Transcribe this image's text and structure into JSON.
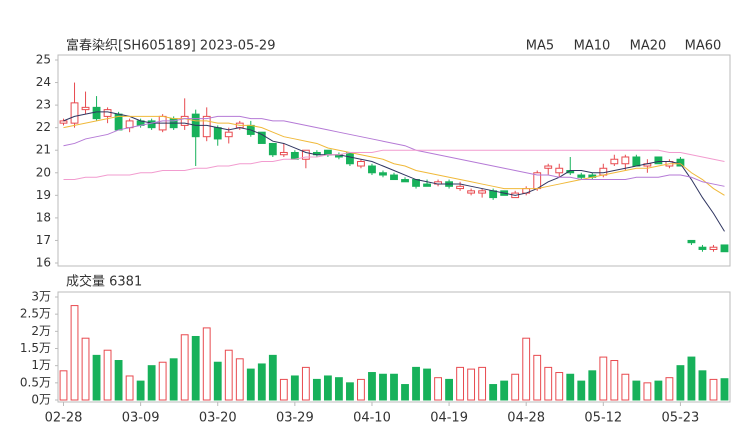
{
  "chart_data": [
    {
      "type": "candlestick",
      "title": "富春染织[SH605189] 2023-05-29",
      "up_color": "#e84a4f",
      "down_color": "#17b15a",
      "ylim": [
        16,
        25
      ],
      "yticks": [
        16,
        17,
        18,
        19,
        20,
        21,
        22,
        23,
        24,
        25
      ],
      "open": [
        22.2,
        22.2,
        22.8,
        22.9,
        22.5,
        22.6,
        22.0,
        22.3,
        22.3,
        21.9,
        22.4,
        22.1,
        22.6,
        21.6,
        22.0,
        21.6,
        22.0,
        22.1,
        21.8,
        21.3,
        20.8,
        20.9,
        20.6,
        20.9,
        21.0,
        20.8,
        20.9,
        20.3,
        20.3,
        20.0,
        19.9,
        19.7,
        19.7,
        19.5,
        19.5,
        19.6,
        19.3,
        19.1,
        19.1,
        19.2,
        19.2,
        18.9,
        19.1,
        19.3,
        20.2,
        20.0,
        20.1,
        19.9,
        19.9,
        19.9,
        20.4,
        20.4,
        20.7,
        20.3,
        20.7,
        20.3,
        20.6,
        17.0,
        16.7,
        16.6,
        16.8
      ],
      "high": [
        22.4,
        24.0,
        23.6,
        23.4,
        22.9,
        22.7,
        22.4,
        22.4,
        22.4,
        22.6,
        22.5,
        23.3,
        22.8,
        22.9,
        22.1,
        22.0,
        22.3,
        22.3,
        21.8,
        21.3,
        21.3,
        21.0,
        21.0,
        21.0,
        21.0,
        20.9,
        20.9,
        20.6,
        20.4,
        20.1,
        20.0,
        19.8,
        19.7,
        19.7,
        19.7,
        19.7,
        19.6,
        19.3,
        19.3,
        19.3,
        19.2,
        19.2,
        19.4,
        20.1,
        20.4,
        20.4,
        20.7,
        20.0,
        20.0,
        20.4,
        20.8,
        20.8,
        20.8,
        20.6,
        20.7,
        20.6,
        20.7,
        17.0,
        16.8,
        16.8,
        16.8
      ],
      "low": [
        22.1,
        22.0,
        22.6,
        22.3,
        22.2,
        21.9,
        21.8,
        22.0,
        21.9,
        21.8,
        21.9,
        21.9,
        20.3,
        21.4,
        21.2,
        21.3,
        21.9,
        21.6,
        21.3,
        20.7,
        20.7,
        20.6,
        20.2,
        20.7,
        20.7,
        20.6,
        20.3,
        20.2,
        19.9,
        19.8,
        19.7,
        19.6,
        19.3,
        19.4,
        19.4,
        19.3,
        19.2,
        19.0,
        18.9,
        18.8,
        19.0,
        18.9,
        19.0,
        19.2,
        19.9,
        19.8,
        19.9,
        19.7,
        19.7,
        19.8,
        20.3,
        20.1,
        20.3,
        20.0,
        20.4,
        20.2,
        20.3,
        16.8,
        16.5,
        16.5,
        16.5
      ],
      "close": [
        22.3,
        23.1,
        22.9,
        22.4,
        22.8,
        21.9,
        22.3,
        22.1,
        22.0,
        22.5,
        22.0,
        22.5,
        21.6,
        22.5,
        21.5,
        21.8,
        22.2,
        21.7,
        21.3,
        20.8,
        20.9,
        20.6,
        21.0,
        20.8,
        20.8,
        20.7,
        20.4,
        20.5,
        20.0,
        19.9,
        19.7,
        19.6,
        19.4,
        19.4,
        19.6,
        19.4,
        19.4,
        19.2,
        19.2,
        18.9,
        19.0,
        19.1,
        19.3,
        20.0,
        20.3,
        20.2,
        20.0,
        19.8,
        19.8,
        20.2,
        20.6,
        20.7,
        20.3,
        20.4,
        20.4,
        20.5,
        20.3,
        16.9,
        16.6,
        16.7,
        16.5
      ],
      "series": [
        {
          "name": "MA5",
          "color": "#2f3560",
          "values": [
            22.3,
            22.5,
            22.6,
            22.7,
            22.7,
            22.6,
            22.5,
            22.3,
            22.2,
            22.2,
            22.2,
            22.2,
            22.1,
            22.1,
            22.0,
            21.9,
            22.0,
            21.9,
            21.7,
            21.4,
            21.3,
            21.1,
            20.9,
            20.8,
            20.8,
            20.8,
            20.7,
            20.6,
            20.5,
            20.3,
            20.1,
            19.9,
            19.7,
            19.6,
            19.5,
            19.5,
            19.5,
            19.4,
            19.3,
            19.2,
            19.1,
            19.0,
            19.1,
            19.3,
            19.6,
            19.8,
            20.1,
            20.1,
            20.0,
            20.0,
            20.1,
            20.2,
            20.3,
            20.4,
            20.5,
            20.5,
            20.4,
            19.7,
            18.9,
            18.2,
            17.4
          ]
        },
        {
          "name": "MA10",
          "color": "#f0b93a",
          "values": [
            22.0,
            22.1,
            22.2,
            22.3,
            22.4,
            22.5,
            22.5,
            22.5,
            22.5,
            22.5,
            22.4,
            22.4,
            22.3,
            22.3,
            22.2,
            22.2,
            22.1,
            22.1,
            22.0,
            21.8,
            21.6,
            21.5,
            21.4,
            21.3,
            21.1,
            21.0,
            20.9,
            20.8,
            20.7,
            20.6,
            20.4,
            20.3,
            20.1,
            20.0,
            19.9,
            19.8,
            19.7,
            19.6,
            19.5,
            19.4,
            19.3,
            19.3,
            19.3,
            19.3,
            19.4,
            19.5,
            19.6,
            19.7,
            19.8,
            19.9,
            20.0,
            20.1,
            20.2,
            20.2,
            20.3,
            20.4,
            20.4,
            20.0,
            19.7,
            19.3,
            19.0
          ]
        },
        {
          "name": "MA20",
          "color": "#b57ad6",
          "values": [
            21.2,
            21.3,
            21.5,
            21.6,
            21.7,
            21.9,
            22.0,
            22.1,
            22.2,
            22.3,
            22.3,
            22.4,
            22.4,
            22.4,
            22.5,
            22.5,
            22.5,
            22.4,
            22.4,
            22.3,
            22.3,
            22.2,
            22.1,
            22.0,
            21.9,
            21.8,
            21.7,
            21.6,
            21.5,
            21.4,
            21.3,
            21.2,
            21.0,
            20.9,
            20.8,
            20.7,
            20.6,
            20.5,
            20.4,
            20.3,
            20.2,
            20.1,
            20.0,
            19.9,
            19.9,
            19.8,
            19.8,
            19.7,
            19.7,
            19.7,
            19.7,
            19.7,
            19.8,
            19.8,
            19.8,
            19.9,
            19.9,
            19.8,
            19.6,
            19.5,
            19.4
          ]
        },
        {
          "name": "MA60",
          "color": "#f29ccf",
          "values": [
            19.7,
            19.7,
            19.8,
            19.8,
            19.9,
            19.9,
            19.9,
            20.0,
            20.0,
            20.1,
            20.1,
            20.1,
            20.2,
            20.2,
            20.3,
            20.3,
            20.4,
            20.4,
            20.5,
            20.5,
            20.6,
            20.6,
            20.7,
            20.7,
            20.8,
            20.8,
            20.9,
            20.9,
            20.9,
            21.0,
            21.0,
            21.0,
            21.0,
            21.0,
            21.0,
            21.0,
            21.0,
            21.0,
            21.0,
            21.0,
            21.0,
            21.0,
            21.0,
            21.0,
            21.0,
            21.0,
            21.0,
            21.0,
            21.0,
            21.0,
            21.0,
            21.0,
            21.0,
            21.0,
            21.0,
            20.9,
            20.9,
            20.8,
            20.7,
            20.6,
            20.5
          ]
        }
      ]
    },
    {
      "type": "bar",
      "title": "成交量 6381",
      "ylim": [
        0,
        3
      ],
      "yticks": [
        {
          "value": 0,
          "label": "0万"
        },
        {
          "value": 0.5,
          "label": "0.5万"
        },
        {
          "value": 1,
          "label": "1万"
        },
        {
          "value": 1.5,
          "label": "1.5万"
        },
        {
          "value": 2,
          "label": "2万"
        },
        {
          "value": 2.5,
          "label": "2.5万"
        },
        {
          "value": 3,
          "label": "3万"
        }
      ],
      "categories": [
        "02-28",
        null,
        null,
        null,
        null,
        null,
        null,
        "03-09",
        null,
        null,
        null,
        null,
        null,
        null,
        "03-20",
        null,
        null,
        null,
        null,
        null,
        null,
        "03-29",
        null,
        null,
        null,
        null,
        null,
        null,
        "04-10",
        null,
        null,
        null,
        null,
        null,
        null,
        "04-19",
        null,
        null,
        null,
        null,
        null,
        null,
        "04-28",
        null,
        null,
        null,
        null,
        null,
        null,
        "05-12",
        null,
        null,
        null,
        null,
        null,
        null,
        "05-23",
        null,
        null,
        null,
        null
      ],
      "values": [
        0.85,
        2.75,
        1.8,
        1.3,
        1.45,
        1.15,
        0.7,
        0.55,
        1.0,
        1.1,
        1.2,
        1.9,
        1.85,
        2.1,
        1.1,
        1.45,
        1.2,
        0.9,
        1.05,
        1.3,
        0.6,
        0.7,
        0.95,
        0.6,
        0.7,
        0.65,
        0.5,
        0.6,
        0.8,
        0.75,
        0.75,
        0.45,
        0.95,
        0.9,
        0.65,
        0.6,
        0.95,
        0.9,
        0.95,
        0.45,
        0.55,
        0.75,
        1.8,
        1.3,
        0.95,
        0.8,
        0.75,
        0.55,
        0.85,
        1.25,
        1.15,
        0.75,
        0.55,
        0.5,
        0.55,
        0.65,
        1.0,
        1.25,
        0.85,
        0.6,
        0.62
      ]
    }
  ]
}
